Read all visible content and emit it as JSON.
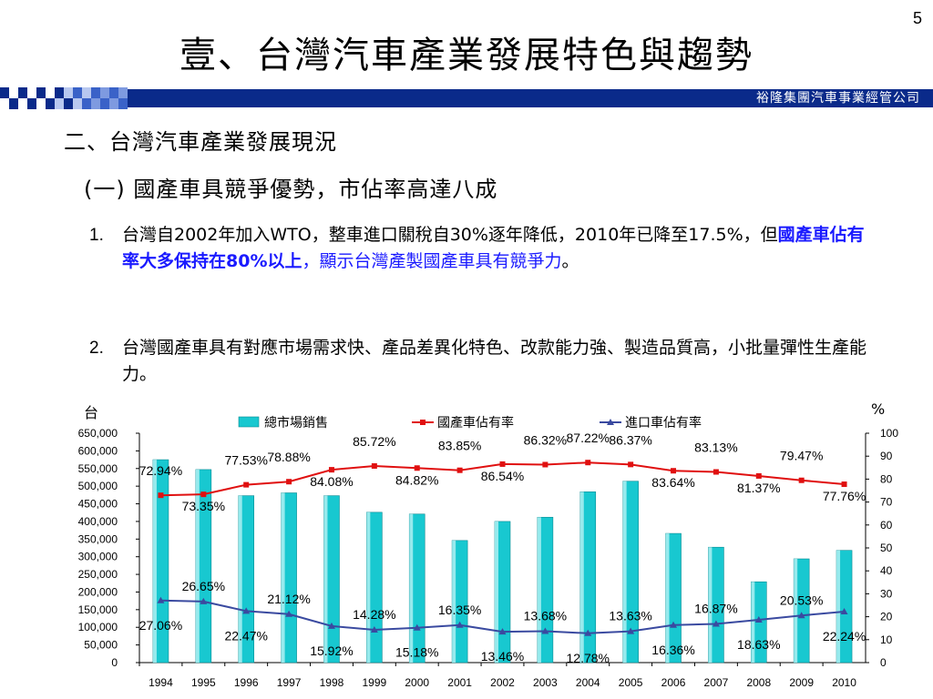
{
  "slide_number": "5",
  "title": "壹、台灣汽車產業發展特色與趨勢",
  "company": "裕隆集團汽車事業經管公司",
  "section": "二、台灣汽車產業發展現況",
  "subsection": "(一) 國產車具競爭優勢，市佔率高達八成",
  "items": [
    {
      "num": "1.",
      "text_a": "台灣自2002年加入WTO，整車進口關稅自30%逐年降低，2010年已降至17.5%，但",
      "text_bold": "國產車佔有率大多保持在80%以上",
      "text_c": "，顯示台灣產製國產車具有競爭力",
      "text_d": "。"
    },
    {
      "num": "2.",
      "text": "台灣國產車具有對應市場需求快、產品差異化特色、改款能力強、製造品質高，小批量彈性生產能力。"
    }
  ],
  "colors": {
    "banner": "#0a2a8a",
    "bar": "#18c8d0",
    "domestic": "#e01010",
    "import": "#3a4aa0",
    "highlight": "#1a1aff"
  },
  "chart_data": {
    "type": "bar",
    "categories": [
      "1994",
      "1995",
      "1996",
      "1997",
      "1998",
      "1999",
      "2000",
      "2001",
      "2002",
      "2003",
      "2004",
      "2005",
      "2006",
      "2007",
      "2008",
      "2009",
      "2010"
    ],
    "series": [
      {
        "name": "總市場銷售",
        "type": "bar",
        "axis": "left",
        "values": [
          575000,
          547000,
          473000,
          481000,
          473000,
          426000,
          421000,
          346000,
          400000,
          412000,
          484000,
          514000,
          366000,
          327000,
          229000,
          294000,
          318000
        ]
      },
      {
        "name": "國產車佔有率",
        "type": "line",
        "axis": "right",
        "values": [
          72.94,
          73.35,
          77.53,
          78.88,
          84.08,
          85.72,
          84.82,
          83.85,
          86.54,
          86.32,
          87.22,
          86.37,
          83.64,
          83.13,
          81.37,
          79.47,
          77.76
        ],
        "labels": [
          "72.94%",
          "73.35%",
          "77.53%",
          "78.88%",
          "84.08%",
          "85.72%",
          "84.82%",
          "83.85%",
          "86.54%",
          "86.32%",
          "87.22%",
          "86.37%",
          "83.64%",
          "83.13%",
          "81.37%",
          "79.47%",
          "77.76%"
        ]
      },
      {
        "name": "進口車佔有率",
        "type": "line",
        "axis": "right",
        "values": [
          27.06,
          26.65,
          22.47,
          21.12,
          15.92,
          14.28,
          15.18,
          16.35,
          13.46,
          13.68,
          12.78,
          13.63,
          16.36,
          16.87,
          18.63,
          20.53,
          22.24
        ],
        "labels": [
          "27.06%",
          "26.65%",
          "22.47%",
          "21.12%",
          "15.92%",
          "14.28%",
          "15.18%",
          "16.35%",
          "13.46%",
          "13.68%",
          "12.78%",
          "13.63%",
          "16.36%",
          "16.87%",
          "18.63%",
          "20.53%",
          "22.24%"
        ]
      }
    ],
    "y_left": {
      "unit": "台",
      "min": 0,
      "max": 650000,
      "step": 50000,
      "tick_labels": [
        "0",
        "50,000",
        "100,000",
        "150,000",
        "200,000",
        "250,000",
        "300,000",
        "350,000",
        "400,000",
        "450,000",
        "500,000",
        "550,000",
        "600,000",
        "650,000"
      ]
    },
    "y_right": {
      "unit": "%",
      "min": 0,
      "max": 100,
      "step": 10,
      "tick_labels": [
        "0",
        "10",
        "20",
        "30",
        "40",
        "50",
        "60",
        "70",
        "80",
        "90",
        "100"
      ]
    },
    "legend_position": "top-center",
    "grid": false
  }
}
